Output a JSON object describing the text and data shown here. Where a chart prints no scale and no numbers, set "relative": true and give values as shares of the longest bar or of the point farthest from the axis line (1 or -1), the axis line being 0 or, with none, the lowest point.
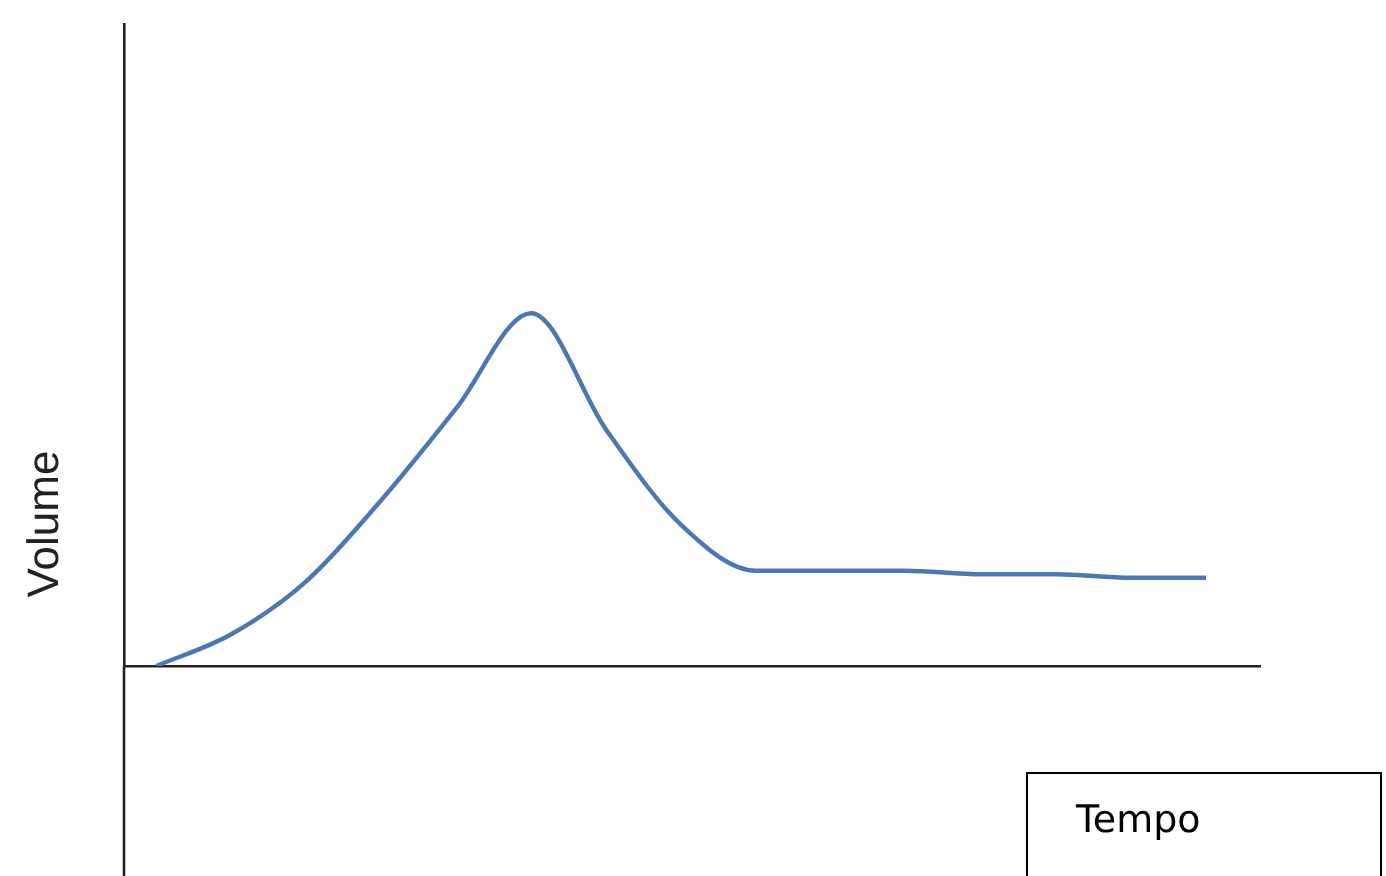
{
  "chart_data": {
    "type": "line",
    "relative": true,
    "annotations": [
      "Tempo"
    ],
    "ylabel": "Volume",
    "legend": false,
    "grid": false,
    "marker": "none",
    "line_style": "solid",
    "categories": [
      null,
      null,
      null,
      null,
      null,
      null,
      null,
      null,
      null,
      null,
      null,
      null,
      null,
      null,
      null
    ],
    "series": [
      {
        "color": "#4a78b5",
        "values": [
          0,
          0.09,
          0.24,
          0.47,
          0.73,
          1,
          0.67,
          0.4,
          0.27,
          0.27,
          0.27,
          0.26,
          0.26,
          0.25,
          0.25
        ]
      }
    ]
  }
}
